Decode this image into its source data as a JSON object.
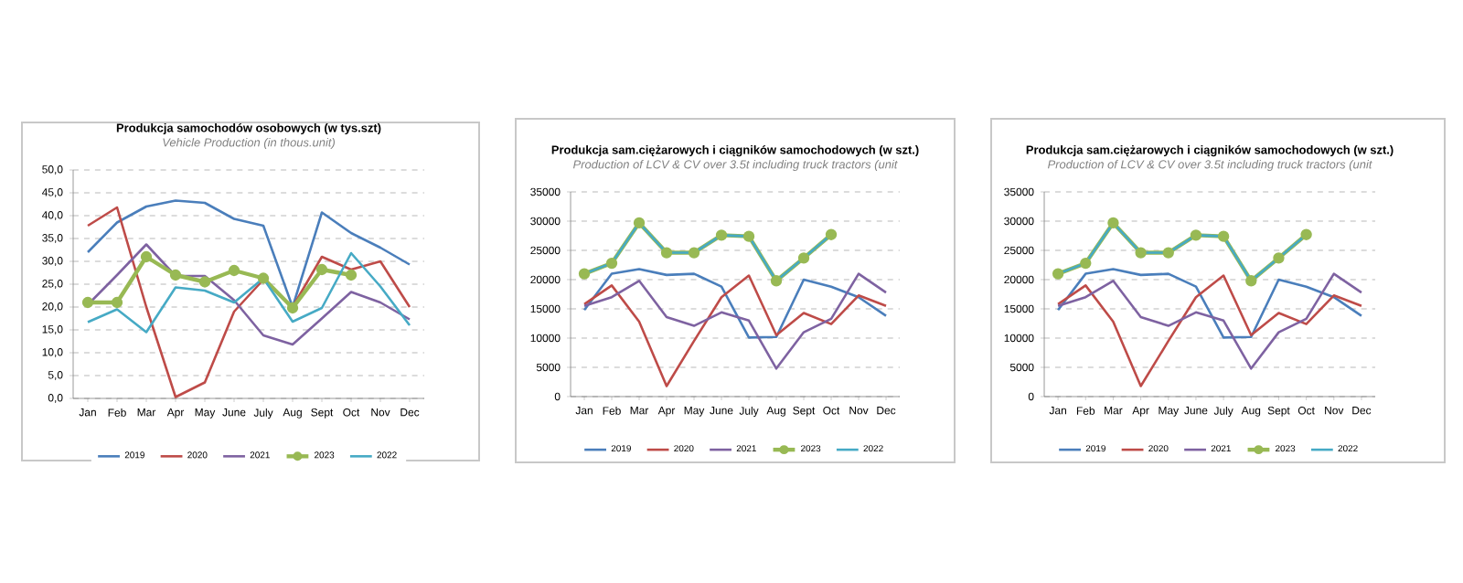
{
  "chart_data": [
    {
      "type": "line",
      "title": "Produkcja samochodów osobowych (w tys.szt)",
      "subtitle": "Vehicle Production (in thous.unit)",
      "categories": [
        "Jan",
        "Feb",
        "Mar",
        "Apr",
        "May",
        "June",
        "July",
        "Aug",
        "Sept",
        "Oct",
        "Nov",
        "Dec"
      ],
      "ylim": [
        0,
        50
      ],
      "yticks": [
        {
          "value": 0,
          "label": "0,0"
        },
        {
          "value": 5,
          "label": "5,0"
        },
        {
          "value": 10,
          "label": "10,0"
        },
        {
          "value": 15,
          "label": "15,0"
        },
        {
          "value": 20,
          "label": "20,0"
        },
        {
          "value": 25,
          "label": "25,0"
        },
        {
          "value": 30,
          "label": "30,0"
        },
        {
          "value": 35,
          "label": "35,0"
        },
        {
          "value": 40,
          "label": "40,0"
        },
        {
          "value": 45,
          "label": "45,0"
        },
        {
          "value": 50,
          "label": "50,0"
        }
      ],
      "grid": "y",
      "legend": "bottom",
      "series": [
        {
          "name": "2019",
          "color": "#4a7ebb",
          "values": [
            32,
            38.5,
            42,
            43.3,
            42.8,
            39.3,
            37.8,
            20,
            40.7,
            36.2,
            33,
            29.3
          ]
        },
        {
          "name": "2020",
          "color": "#be4b48",
          "values": [
            37.8,
            41.8,
            20,
            0.3,
            3.5,
            19,
            26,
            20,
            31,
            28.2,
            30,
            20
          ]
        },
        {
          "name": "2021",
          "color": "#7e62a1",
          "values": [
            20.5,
            27,
            33.7,
            26.8,
            26.8,
            21.5,
            13.8,
            11.8,
            17.5,
            23.3,
            21,
            17.3
          ]
        },
        {
          "name": "2023",
          "color": "#98b954",
          "marker": "circle",
          "values": [
            21,
            21,
            31,
            27,
            25.5,
            28,
            26.3,
            19.8,
            28.2,
            27,
            null,
            null
          ]
        },
        {
          "name": "2022",
          "color": "#46aac5",
          "values": [
            16.7,
            19.5,
            14.5,
            24.3,
            23.6,
            21,
            26.3,
            16.8,
            19.8,
            31.8,
            24.5,
            16
          ]
        }
      ]
    },
    {
      "type": "line",
      "title": "Produkcja sam.ciężarowych i ciągników samochodowych (w szt.)",
      "subtitle": "Production of LCV & CV over 3.5t including truck tractors (unit",
      "categories": [
        "Jan",
        "Feb",
        "Mar",
        "Apr",
        "May",
        "June",
        "July",
        "Aug",
        "Sept",
        "Oct",
        "Nov",
        "Dec"
      ],
      "ylim": [
        0,
        35000
      ],
      "yticks": [
        0,
        5000,
        10000,
        15000,
        20000,
        25000,
        30000,
        35000
      ],
      "grid": "y",
      "legend": "bottom",
      "series": [
        {
          "name": "2019",
          "color": "#4a7ebb",
          "values": [
            14800,
            21000,
            21800,
            20800,
            21000,
            18800,
            10100,
            10200,
            20000,
            18800,
            17000,
            13800
          ]
        },
        {
          "name": "2020",
          "color": "#be4b48",
          "values": [
            15800,
            19000,
            12800,
            1800,
            9500,
            17000,
            20700,
            10500,
            14300,
            12400,
            17300,
            15500
          ]
        },
        {
          "name": "2021",
          "color": "#7e62a1",
          "values": [
            15500,
            17000,
            19800,
            13600,
            12100,
            14400,
            13000,
            4800,
            11000,
            13300,
            21000,
            17800
          ]
        },
        {
          "name": "2023",
          "color": "#98b954",
          "marker": "circle",
          "values": [
            21000,
            22800,
            29700,
            24600,
            24600,
            27600,
            27400,
            19800,
            23700,
            27700,
            null,
            null
          ]
        },
        {
          "name": "2022",
          "color": "#46aac5",
          "values": [
            21000,
            22800,
            29700,
            24600,
            24600,
            27600,
            27400,
            19800,
            23700,
            27700,
            null,
            null
          ]
        }
      ]
    },
    {
      "type": "line",
      "title": "Produkcja sam.ciężarowych i ciągników samochodowych (w szt.)",
      "subtitle": "Production of LCV & CV over 3.5t including truck tractors (unit",
      "categories": [
        "Jan",
        "Feb",
        "Mar",
        "Apr",
        "May",
        "June",
        "July",
        "Aug",
        "Sept",
        "Oct",
        "Nov",
        "Dec"
      ],
      "ylim": [
        0,
        35000
      ],
      "yticks": [
        0,
        5000,
        10000,
        15000,
        20000,
        25000,
        30000,
        35000
      ],
      "grid": "y",
      "legend": "bottom",
      "series": [
        {
          "name": "2019",
          "color": "#4a7ebb",
          "values": [
            14800,
            21000,
            21800,
            20800,
            21000,
            18800,
            10100,
            10200,
            20000,
            18800,
            17000,
            13800
          ]
        },
        {
          "name": "2020",
          "color": "#be4b48",
          "values": [
            15800,
            19000,
            12800,
            1800,
            9500,
            17000,
            20700,
            10500,
            14300,
            12400,
            17300,
            15500
          ]
        },
        {
          "name": "2021",
          "color": "#7e62a1",
          "values": [
            15500,
            17000,
            19800,
            13600,
            12100,
            14400,
            13000,
            4800,
            11000,
            13300,
            21000,
            17800
          ]
        },
        {
          "name": "2023",
          "color": "#98b954",
          "marker": "circle",
          "values": [
            21000,
            22800,
            29700,
            24600,
            24600,
            27600,
            27400,
            19800,
            23700,
            27700,
            null,
            null
          ]
        },
        {
          "name": "2022",
          "color": "#46aac5",
          "values": [
            21000,
            22800,
            29700,
            24600,
            24600,
            27600,
            27400,
            19800,
            23700,
            27700,
            null,
            null
          ]
        }
      ]
    }
  ]
}
